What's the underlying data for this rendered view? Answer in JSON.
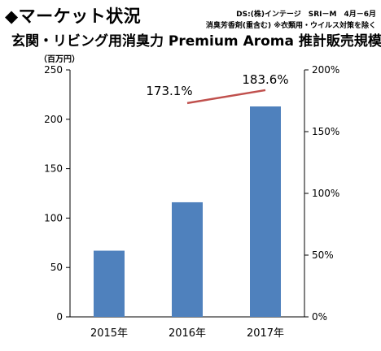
{
  "header": {
    "heading": "◆マーケット状況",
    "source_line1": "DS:(株)インテージ　SRI－M　4月－6月",
    "source_line2": "消臭芳香剤(重含む) ※衣類用・ウイルス対策を除く",
    "chart_title": "玄関・リビング用消臭力 Premium Aroma 推計販売規模",
    "unit_label": "（百万円）"
  },
  "chart_data": {
    "type": "bar",
    "title": "玄関・リビング用消臭力 Premium Aroma 推計販売規模",
    "categories": [
      "2015年",
      "2016年",
      "2017年"
    ],
    "series": [
      {
        "values": [
          67,
          116,
          213
        ],
        "axis": "left",
        "color": "#4f81bd"
      },
      {
        "values": [
          null,
          173.1,
          183.6
        ],
        "axis": "right",
        "type": "line",
        "color": "#c0504d"
      }
    ],
    "data_labels": [
      "173.1%",
      "183.6%"
    ],
    "ylim": [
      0,
      250
    ],
    "y_ticks": [
      "0",
      "50",
      "100",
      "150",
      "200",
      "250"
    ],
    "y2lim": [
      0,
      200
    ],
    "y2_ticks": [
      "0%",
      "50%",
      "100%",
      "150%",
      "200%"
    ],
    "ylabel": "（百万円）",
    "grid": false,
    "legend": "none"
  }
}
